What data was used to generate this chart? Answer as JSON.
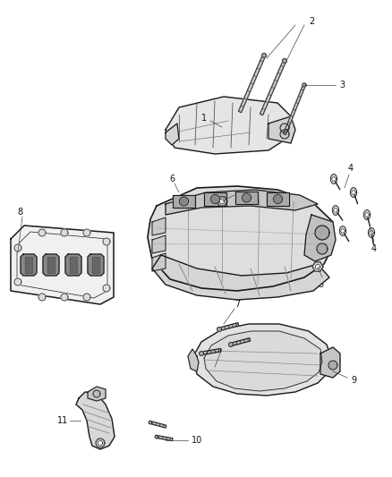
{
  "bg_color": "#ffffff",
  "line_color": "#1a1a1a",
  "fig_width": 4.38,
  "fig_height": 5.33,
  "dpi": 100,
  "part_color": "#e8e8e8",
  "part_color2": "#d0d0d0",
  "part_edge": "#222222"
}
